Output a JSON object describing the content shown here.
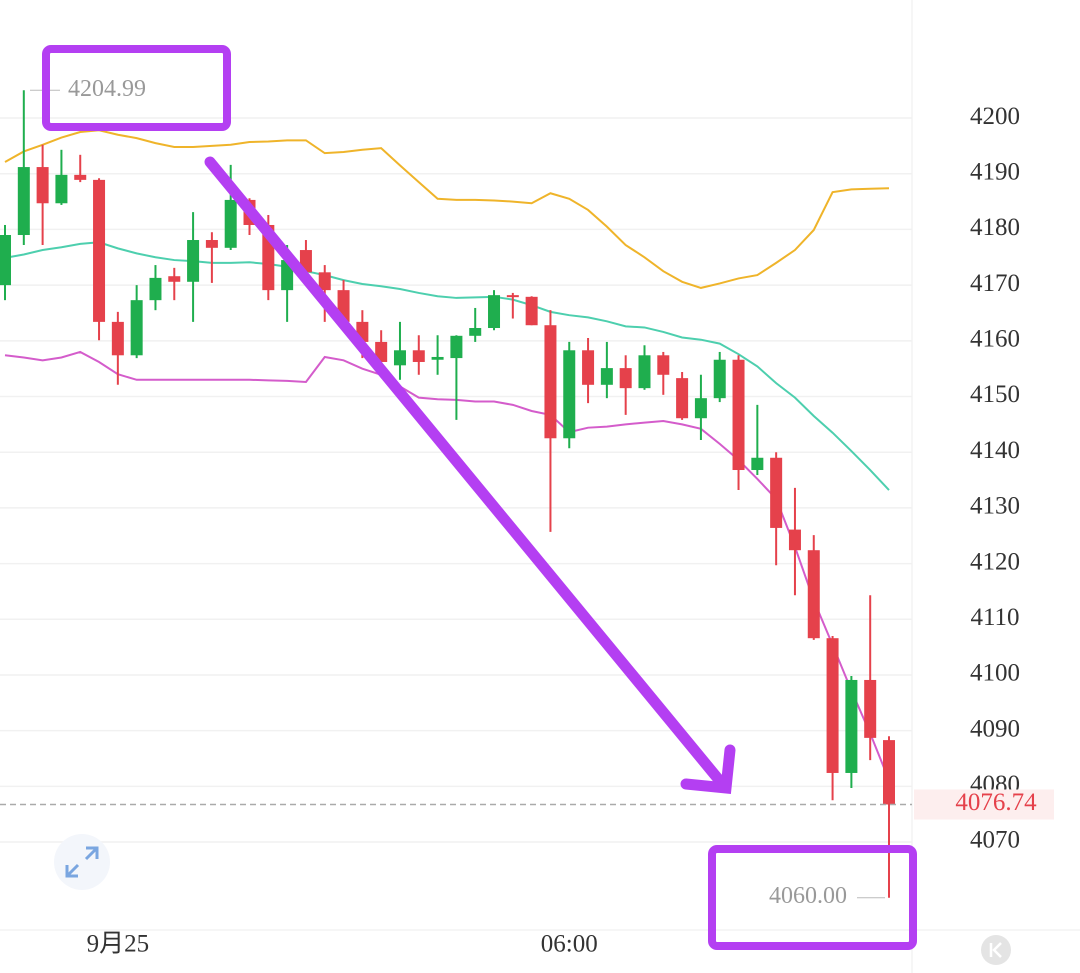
{
  "chart_data": {
    "type": "candlestick",
    "categories": [
      null,
      null,
      null,
      null,
      null,
      null,
      "9月25",
      null,
      null,
      null,
      null,
      null,
      null,
      null,
      null,
      null,
      null,
      null,
      null,
      null,
      null,
      null,
      null,
      null,
      null,
      null,
      null,
      null,
      null,
      null,
      "06:00",
      null,
      null,
      null,
      null,
      null,
      null,
      null,
      null,
      null,
      null,
      null,
      null,
      null,
      null,
      null,
      null,
      null
    ],
    "open": [
      4170.0,
      4179.0,
      4191.2,
      4184.7,
      4189.8,
      4188.9,
      4163.4,
      4157.4,
      4167.3,
      4171.6,
      4170.6,
      4178.1,
      4176.7,
      4185.3,
      4180.8,
      4169.1,
      4176.3,
      4172.3,
      4169.1,
      4163.4,
      4159.8,
      4155.6,
      4158.3,
      4156.6,
      4156.9,
      4160.9,
      4162.3,
      4168.2,
      4167.9,
      4162.8,
      4142.5,
      4158.3,
      4152.1,
      4155.1,
      4151.5,
      4157.4,
      4153.3,
      4146.1,
      4149.7,
      4156.6,
      4136.8,
      4139.0,
      4126.1,
      4122.4,
      4106.6,
      4082.4,
      4099.1,
      4088.3
    ],
    "high": [
      4180.8,
      4204.99,
      4195.2,
      4194.3,
      4193.4,
      4189.2,
      4165.2,
      4170.0,
      4173.6,
      4173.1,
      4183.1,
      4179.5,
      4191.6,
      4185.6,
      4182.6,
      4177.2,
      4178.1,
      4173.6,
      4170.9,
      4165.5,
      4161.9,
      4163.4,
      4161.0,
      4161.0,
      4161.0,
      4165.9,
      4169.1,
      4168.6,
      4168.0,
      4165.5,
      4159.8,
      4160.5,
      4159.8,
      4157.4,
      4159.2,
      4158.0,
      4154.4,
      4153.9,
      4158.0,
      4157.4,
      4148.5,
      4140.0,
      4133.6,
      4125.1,
      4107.0,
      4099.8,
      4114.3,
      4089.0
    ],
    "low": [
      4167.3,
      4177.2,
      4177.2,
      4184.4,
      4188.5,
      4160.1,
      4152.1,
      4156.9,
      4165.5,
      4167.3,
      4163.4,
      4170.4,
      4176.3,
      4179.0,
      4167.3,
      4163.4,
      4170.9,
      4163.4,
      4161.9,
      4156.9,
      4154.4,
      4153.0,
      4153.9,
      4153.9,
      4145.8,
      4159.8,
      4161.9,
      4164.0,
      4162.8,
      4125.7,
      4140.7,
      4148.8,
      4149.7,
      4146.7,
      4151.2,
      4150.3,
      4145.8,
      4142.2,
      4149.0,
      4133.2,
      4135.9,
      4119.7,
      4114.3,
      4106.3,
      4077.5,
      4079.7,
      4084.7,
      4060.0
    ],
    "close": [
      4179.0,
      4191.2,
      4184.7,
      4189.8,
      4188.9,
      4163.4,
      4157.4,
      4167.3,
      4171.3,
      4170.6,
      4178.1,
      4176.7,
      4185.3,
      4180.8,
      4169.1,
      4174.5,
      4172.3,
      4169.1,
      4163.4,
      4159.8,
      4156.2,
      4158.3,
      4156.2,
      4157.1,
      4160.9,
      4162.3,
      4168.2,
      4167.9,
      4162.8,
      4142.5,
      4158.3,
      4152.1,
      4155.1,
      4151.5,
      4157.4,
      4153.9,
      4146.1,
      4149.7,
      4156.6,
      4136.8,
      4139.0,
      4126.4,
      4122.4,
      4106.6,
      4082.4,
      4099.1,
      4088.7,
      4076.74
    ],
    "up_color": "#1fae4e",
    "down_color": "#e5414b",
    "bands": [
      {
        "color": "#efb42a",
        "values": [
          4192.1,
          4194.0,
          4195.2,
          4196.5,
          4197.5,
          4197.8,
          4197.0,
          4196.4,
          4195.5,
          4194.8,
          4194.8,
          4195.0,
          4195.2,
          4195.7,
          4195.8,
          4196.0,
          4196.0,
          4193.7,
          4193.9,
          4194.3,
          4194.6,
          4191.5,
          4188.5,
          4185.5,
          4185.3,
          4185.3,
          4185.2,
          4185.0,
          4184.7,
          4186.5,
          4185.5,
          4183.5,
          4180.5,
          4177.2,
          4175.0,
          4172.5,
          4170.6,
          4169.5,
          4170.3,
          4171.2,
          4171.8,
          4174.0,
          4176.3,
          4179.9,
          4186.7,
          4187.2,
          4187.3,
          4187.4
        ]
      },
      {
        "color": "#4dcfae",
        "values": [
          4174.9,
          4175.5,
          4176.3,
          4176.8,
          4177.4,
          4177.7,
          4176.6,
          4175.7,
          4175.0,
          4174.5,
          4174.3,
          4174.0,
          4174.0,
          4174.1,
          4173.8,
          4173.3,
          4172.5,
          4171.8,
          4170.9,
          4170.2,
          4169.8,
          4169.3,
          4168.6,
          4168.0,
          4167.7,
          4167.8,
          4167.9,
          4167.4,
          4166.4,
          4165.2,
          4164.6,
          4164.2,
          4163.5,
          4162.6,
          4162.4,
          4161.6,
          4160.6,
          4160.2,
          4159.5,
          4157.6,
          4155.4,
          4152.4,
          4149.8,
          4146.5,
          4143.5,
          4140.2,
          4136.8,
          4133.2
        ]
      },
      {
        "color": "#d45ccb",
        "values": [
          4157.4,
          4157.0,
          4156.5,
          4157.0,
          4158.0,
          4156.2,
          4154.0,
          4153.0,
          4153.0,
          4153.0,
          4153.0,
          4153.0,
          4153.0,
          4153.0,
          4152.9,
          4152.8,
          4152.6,
          4157.1,
          4156.5,
          4155.0,
          4153.9,
          4151.8,
          4149.8,
          4149.5,
          4149.4,
          4149.1,
          4149.1,
          4148.5,
          4147.4,
          4146.7,
          4143.6,
          4144.4,
          4144.6,
          4145.0,
          4145.3,
          4145.6,
          4145.0,
          4144.2,
          4141.5,
          4138.6,
          4135.2,
          4131.6,
          4123.0,
          4113.4,
          4105.4,
          4097.2,
          4089.5,
          4081.1
        ]
      }
    ],
    "ylim": [
      4054.2,
      4221.2
    ],
    "yticks": [
      4070,
      4080,
      4090,
      4100,
      4110,
      4120,
      4130,
      4140,
      4150,
      4160,
      4170,
      4180,
      4190,
      4200
    ],
    "grid": true,
    "high_marker": 4204.99,
    "low_marker": {
      "value": 4060,
      "label": "4060.00"
    },
    "last_price": 4076.74
  }
}
